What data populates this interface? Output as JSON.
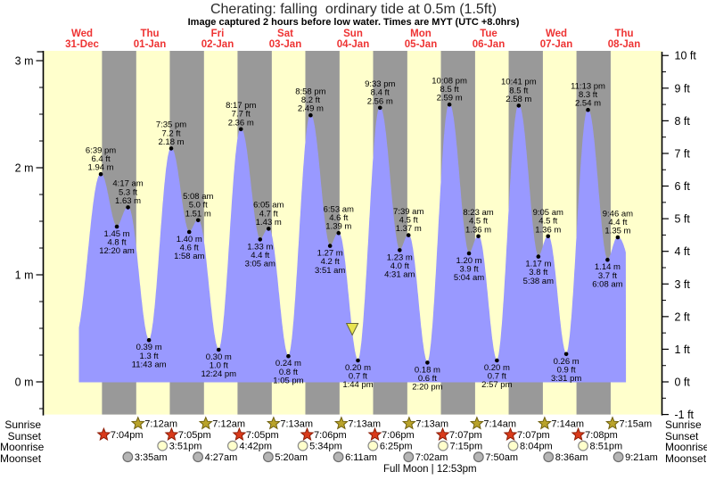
{
  "title": "Cherating: falling  ordinary tide at 0.5m (1.5ft)",
  "subtitle": "Image captured 2 hours before low water. Times are MYT (UTC +8.0hrs)",
  "footer": {
    "full_moon_label": "Full Moon | 12:53pm"
  },
  "row_labels": {
    "sunrise": "Sunrise",
    "sunset": "Sunset",
    "moonrise": "Moonrise",
    "moonset": "Moonset"
  },
  "colors": {
    "day_background": "#ffffcc",
    "night_background": "#999999",
    "tide_fill": "#9999ff",
    "date_label": "#ee3333",
    "axis_text": "#000000",
    "annotation_text": "#000000",
    "sunrise_star": "#b9a32a",
    "sunrise_star_border": "#6f6010",
    "sunset_star": "#d93a1a",
    "sunset_star_border": "#8d1d06",
    "moonrise_circle": "#ffffcc",
    "moonrise_circle_border": "#8a8a8a",
    "moonset_circle": "#b5b5b5",
    "moonset_circle_border": "#6e6e6e",
    "capture_marker": "#e8e44f",
    "capture_marker_border": "#666633"
  },
  "chart_data": {
    "type": "area",
    "title": "Cherating: falling  ordinary tide at 0.5m (1.5ft)",
    "y_axis_left_unit": "m",
    "y_axis_left_ticks": [
      0,
      1,
      2,
      3
    ],
    "y_axis_right_unit": "ft",
    "y_axis_right_min": -1,
    "y_axis_right_max": 10,
    "days": [
      {
        "weekday": "Wed",
        "date": "31-Dec"
      },
      {
        "weekday": "Thu",
        "date": "01-Jan"
      },
      {
        "weekday": "Fri",
        "date": "02-Jan"
      },
      {
        "weekday": "Sat",
        "date": "03-Jan"
      },
      {
        "weekday": "Sun",
        "date": "04-Jan"
      },
      {
        "weekday": "Mon",
        "date": "05-Jan"
      },
      {
        "weekday": "Tue",
        "date": "06-Jan"
      },
      {
        "weekday": "Wed",
        "date": "07-Jan"
      },
      {
        "weekday": "Thu",
        "date": "08-Jan"
      }
    ],
    "tide_events": [
      {
        "day": 0,
        "time": "6:39 pm",
        "type": "high",
        "m": "1.94",
        "ft": "6.4"
      },
      {
        "day": 1,
        "time": "12:20 am",
        "type": "low",
        "m": "1.45",
        "ft": "4.8"
      },
      {
        "day": 1,
        "time": "4:17 am",
        "type": "high",
        "m": "1.63",
        "ft": "5.3"
      },
      {
        "day": 1,
        "time": "11:43 am",
        "type": "low",
        "m": "0.39",
        "ft": "1.3"
      },
      {
        "day": 1,
        "time": "7:35 pm",
        "type": "high",
        "m": "2.18",
        "ft": "7.2"
      },
      {
        "day": 2,
        "time": "1:58 am",
        "type": "low",
        "m": "1.40",
        "ft": "4.6"
      },
      {
        "day": 2,
        "time": "5:08 am",
        "type": "high",
        "m": "1.51",
        "ft": "5.0"
      },
      {
        "day": 2,
        "time": "12:24 pm",
        "type": "low",
        "m": "0.30",
        "ft": "1.0"
      },
      {
        "day": 2,
        "time": "8:17 pm",
        "type": "high",
        "m": "2.36",
        "ft": "7.7"
      },
      {
        "day": 3,
        "time": "3:05 am",
        "type": "low",
        "m": "1.33",
        "ft": "4.4"
      },
      {
        "day": 3,
        "time": "6:05 am",
        "type": "high",
        "m": "1.43",
        "ft": "4.7"
      },
      {
        "day": 3,
        "time": "1:05 pm",
        "type": "low",
        "m": "0.24",
        "ft": "0.8"
      },
      {
        "day": 3,
        "time": "8:58 pm",
        "type": "high",
        "m": "2.49",
        "ft": "8.2"
      },
      {
        "day": 4,
        "time": "3:51 am",
        "type": "low",
        "m": "1.27",
        "ft": "4.2"
      },
      {
        "day": 4,
        "time": "6:53 am",
        "type": "high",
        "m": "1.39",
        "ft": "4.6"
      },
      {
        "day": 4,
        "time": "1:44 pm",
        "type": "low",
        "m": "0.20",
        "ft": "0.7"
      },
      {
        "day": 4,
        "time": "9:33 pm",
        "type": "high",
        "m": "2.56",
        "ft": "8.4"
      },
      {
        "day": 5,
        "time": "4:31 am",
        "type": "low",
        "m": "1.23",
        "ft": "4.0"
      },
      {
        "day": 5,
        "time": "7:39 am",
        "type": "high",
        "m": "1.37",
        "ft": "4.5"
      },
      {
        "day": 5,
        "time": "2:20 pm",
        "type": "low",
        "m": "0.18",
        "ft": "0.6"
      },
      {
        "day": 5,
        "time": "10:08 pm",
        "type": "high",
        "m": "2.59",
        "ft": "8.5"
      },
      {
        "day": 6,
        "time": "5:04 am",
        "type": "low",
        "m": "1.20",
        "ft": "3.9"
      },
      {
        "day": 6,
        "time": "8:23 am",
        "type": "high",
        "m": "1.36",
        "ft": "4.5"
      },
      {
        "day": 6,
        "time": "2:57 pm",
        "type": "low",
        "m": "0.20",
        "ft": "0.7"
      },
      {
        "day": 6,
        "time": "10:41 pm",
        "type": "high",
        "m": "2.58",
        "ft": "8.5"
      },
      {
        "day": 7,
        "time": "5:38 am",
        "type": "low",
        "m": "1.17",
        "ft": "3.8"
      },
      {
        "day": 7,
        "time": "9:05 am",
        "type": "high",
        "m": "1.36",
        "ft": "4.5"
      },
      {
        "day": 7,
        "time": "3:31 pm",
        "type": "low",
        "m": "0.26",
        "ft": "0.9"
      },
      {
        "day": 7,
        "time": "11:13 pm",
        "type": "high",
        "m": "2.54",
        "ft": "8.3"
      },
      {
        "day": 8,
        "time": "6:08 am",
        "type": "low",
        "m": "1.14",
        "ft": "3.7"
      },
      {
        "day": 8,
        "time": "9:46 am",
        "type": "high",
        "m": "1.35",
        "ft": "4.4"
      }
    ],
    "sunrise": [
      {
        "day": 1,
        "time": "7:12am"
      },
      {
        "day": 2,
        "time": "7:12am"
      },
      {
        "day": 3,
        "time": "7:13am"
      },
      {
        "day": 4,
        "time": "7:13am"
      },
      {
        "day": 5,
        "time": "7:13am"
      },
      {
        "day": 6,
        "time": "7:14am"
      },
      {
        "day": 7,
        "time": "7:14am"
      },
      {
        "day": 8,
        "time": "7:15am"
      }
    ],
    "sunset": [
      {
        "day": 0,
        "time": "7:04pm"
      },
      {
        "day": 1,
        "time": "7:05pm"
      },
      {
        "day": 2,
        "time": "7:05pm"
      },
      {
        "day": 3,
        "time": "7:06pm"
      },
      {
        "day": 4,
        "time": "7:06pm"
      },
      {
        "day": 5,
        "time": "7:07pm"
      },
      {
        "day": 6,
        "time": "7:07pm"
      },
      {
        "day": 7,
        "time": "7:08pm"
      }
    ],
    "moonrise": [
      {
        "day": 1,
        "time": "3:51pm"
      },
      {
        "day": 2,
        "time": "4:42pm"
      },
      {
        "day": 3,
        "time": "5:34pm"
      },
      {
        "day": 4,
        "time": "6:25pm"
      },
      {
        "day": 5,
        "time": "7:15pm"
      },
      {
        "day": 6,
        "time": "8:04pm"
      },
      {
        "day": 7,
        "time": "8:51pm"
      }
    ],
    "moonset": [
      {
        "day": 1,
        "time": "3:35am"
      },
      {
        "day": 2,
        "time": "4:27am"
      },
      {
        "day": 3,
        "time": "5:20am"
      },
      {
        "day": 4,
        "time": "6:11am"
      },
      {
        "day": 5,
        "time": "7:02am"
      },
      {
        "day": 6,
        "time": "7:50am"
      },
      {
        "day": 7,
        "time": "8:36am"
      },
      {
        "day": 8,
        "time": "9:21am"
      }
    ],
    "capture_marker": {
      "day": 4,
      "time": "11:44am",
      "height_m": 0.5,
      "shape": "down-triangle"
    }
  }
}
